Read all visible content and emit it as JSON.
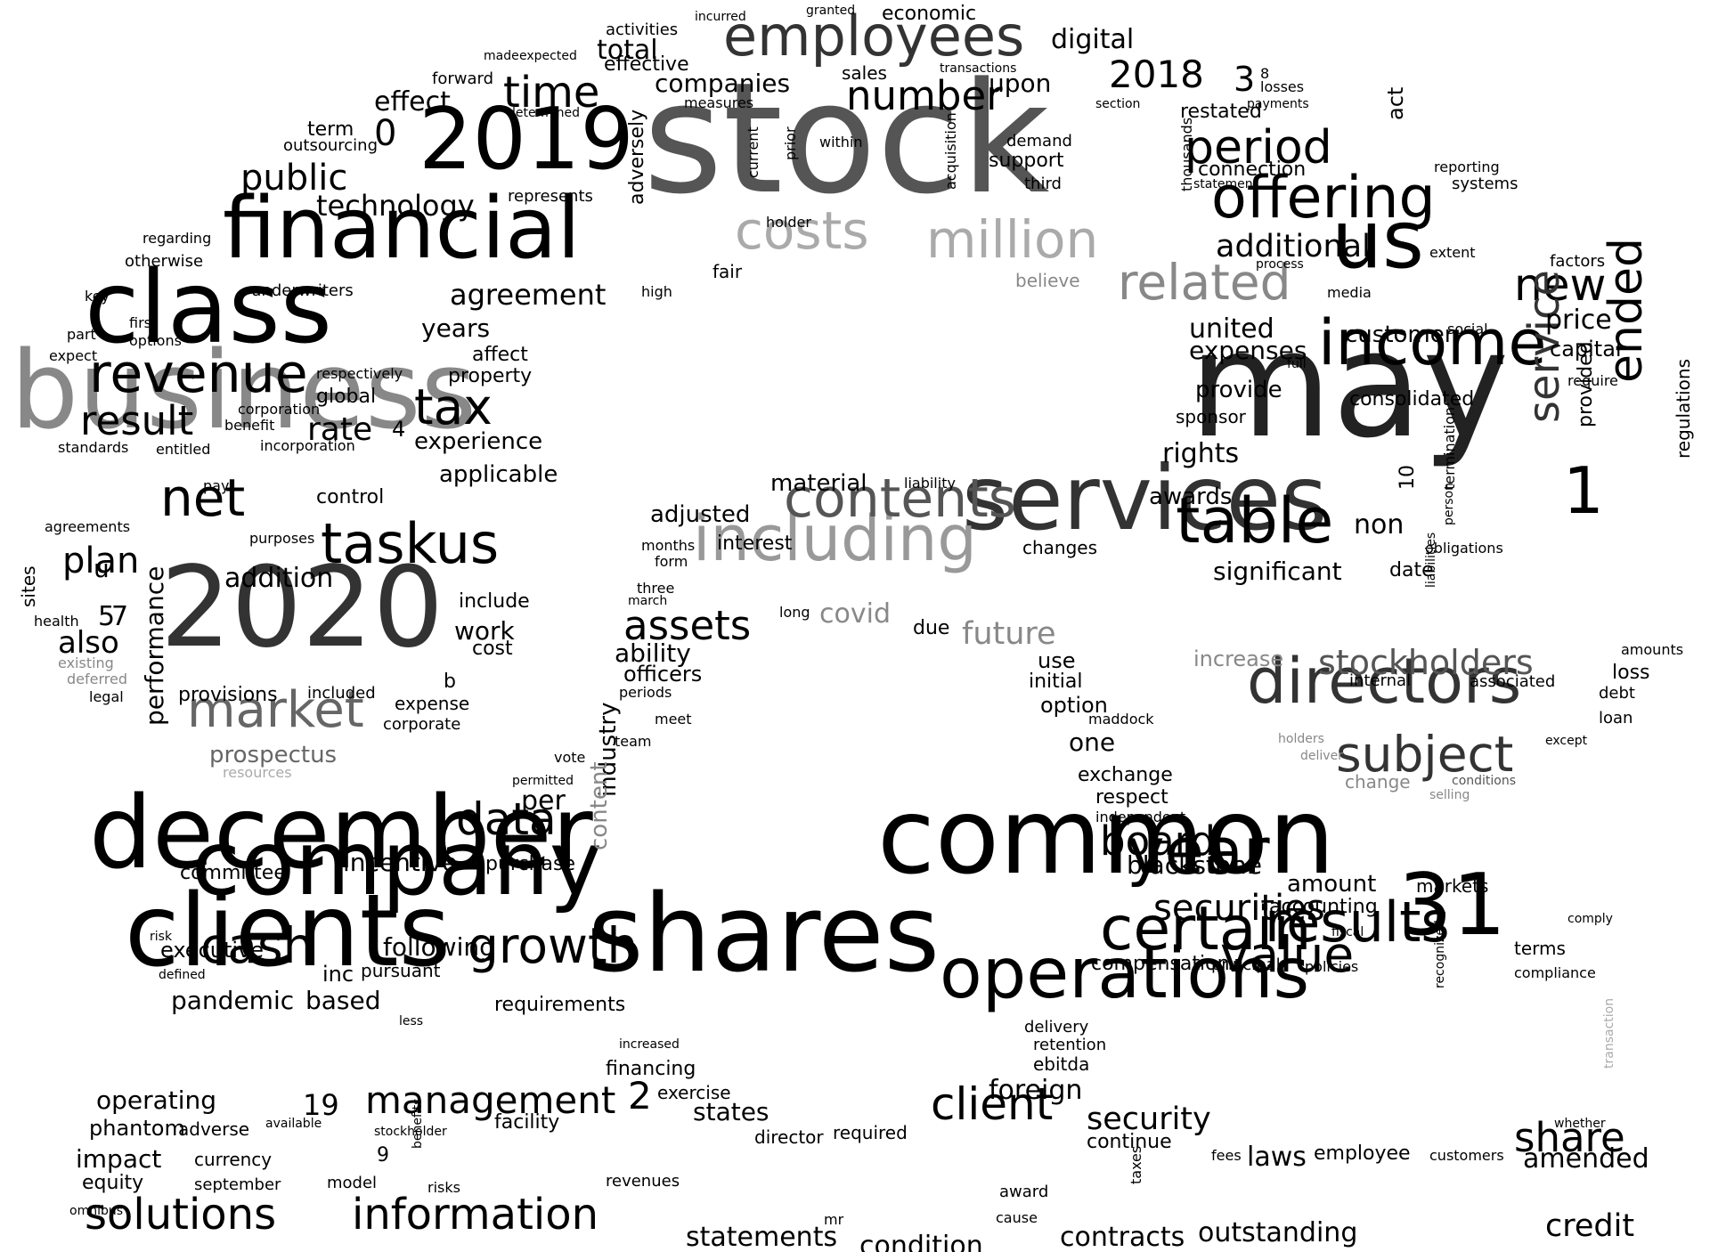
{
  "words": [
    {
      "text": "stock",
      "color": "#555555"
    },
    {
      "text": "may",
      "color": "#222222"
    },
    {
      "text": "business",
      "color": "#888888"
    },
    {
      "text": "services",
      "color": "#333333"
    },
    {
      "text": "common",
      "color": "#000000"
    },
    {
      "text": "shares",
      "color": "#000000"
    },
    {
      "text": "clients",
      "color": "#000000"
    },
    {
      "text": "december",
      "color": "#000000"
    },
    {
      "text": "2020",
      "color": "#333333"
    },
    {
      "text": "class",
      "color": "#000000"
    },
    {
      "text": "financial",
      "color": "#000000"
    },
    {
      "text": "2019",
      "color": "#000000"
    },
    {
      "text": "company",
      "color": "#000000"
    },
    {
      "text": "operations",
      "color": "#000000"
    },
    {
      "text": "31",
      "color": "#000000"
    },
    {
      "text": "including",
      "color": "#999999"
    },
    {
      "text": "employees",
      "color": "#333333"
    },
    {
      "text": "us",
      "color": "#000000"
    },
    {
      "text": "income",
      "color": "#000000"
    },
    {
      "text": "certain",
      "color": "#000000"
    },
    {
      "text": "directors",
      "color": "#333333"
    },
    {
      "text": "offering",
      "color": "#000000"
    },
    {
      "text": "million",
      "color": "#aaaaaa"
    },
    {
      "text": "costs",
      "color": "#aaaaaa"
    },
    {
      "text": "contents",
      "color": "#555555"
    },
    {
      "text": "table",
      "color": "#000000"
    },
    {
      "text": "year",
      "color": "#000000"
    },
    {
      "text": "results",
      "color": "#000000"
    },
    {
      "text": "revenue",
      "color": "#000000"
    },
    {
      "text": "market",
      "color": "#666666"
    },
    {
      "text": "taskus",
      "color": "#000000"
    },
    {
      "text": "net",
      "color": "#000000"
    },
    {
      "text": "related",
      "color": "#888888"
    },
    {
      "text": "subject",
      "color": "#333333"
    },
    {
      "text": "information",
      "color": "#000000"
    },
    {
      "text": "solutions",
      "color": "#000000"
    },
    {
      "text": "growth",
      "color": "#000000"
    },
    {
      "text": "cash",
      "color": "#000000"
    },
    {
      "text": "period",
      "color": "#000000"
    },
    {
      "text": "time",
      "color": "#000000"
    },
    {
      "text": "result",
      "color": "#000000"
    },
    {
      "text": "value",
      "color": "#000000"
    },
    {
      "text": "securities",
      "color": "#000000"
    },
    {
      "text": "client",
      "color": "#000000"
    },
    {
      "text": "data",
      "color": "#000000"
    },
    {
      "text": "tax",
      "color": "#000000"
    },
    {
      "text": "public",
      "color": "#000000"
    },
    {
      "text": "number",
      "color": "#000000"
    },
    {
      "text": "board",
      "color": "#000000"
    },
    {
      "text": "share",
      "color": "#000000"
    },
    {
      "text": "management",
      "color": "#000000"
    },
    {
      "text": "stockholders",
      "color": "#555555"
    },
    {
      "text": "assets",
      "color": "#000000"
    },
    {
      "text": "future",
      "color": "#888888"
    },
    {
      "text": "new",
      "color": "#000000"
    },
    {
      "text": "ended",
      "color": "#000000"
    },
    {
      "text": "service",
      "color": "#333333"
    },
    {
      "text": "1",
      "color": "#000000"
    },
    {
      "text": "2",
      "color": "#000000"
    },
    {
      "text": "2018",
      "color": "#000000"
    },
    {
      "text": "technology",
      "color": "#000000"
    },
    {
      "text": "additional",
      "color": "#000000"
    },
    {
      "text": "agreement",
      "color": "#000000"
    },
    {
      "text": "plan",
      "color": "#000000"
    },
    {
      "text": "prospectus",
      "color": "#666666"
    },
    {
      "text": "security",
      "color": "#000000"
    },
    {
      "text": "pandemic",
      "color": "#000000"
    },
    {
      "text": "based",
      "color": "#000000"
    },
    {
      "text": "incentive",
      "color": "#000000"
    },
    {
      "text": "following",
      "color": "#000000"
    },
    {
      "text": "amended",
      "color": "#000000"
    },
    {
      "text": "outstanding",
      "color": "#000000"
    },
    {
      "text": "statements",
      "color": "#000000"
    },
    {
      "text": "credit",
      "color": "#000000"
    },
    {
      "text": "condition",
      "color": "#000000"
    },
    {
      "text": "contracts",
      "color": "#000000"
    },
    {
      "text": "blackstone",
      "color": "#000000"
    },
    {
      "text": "foreign",
      "color": "#000000"
    },
    {
      "text": "laws",
      "color": "#000000"
    },
    {
      "text": "operating",
      "color": "#000000"
    },
    {
      "text": "equity",
      "color": "#000000"
    },
    {
      "text": "impact",
      "color": "#000000"
    },
    {
      "text": "phantom",
      "color": "#000000"
    },
    {
      "text": "executive",
      "color": "#000000"
    },
    {
      "text": "committee",
      "color": "#000000"
    },
    {
      "text": "provisions",
      "color": "#000000"
    },
    {
      "text": "also",
      "color": "#000000"
    },
    {
      "text": "effect",
      "color": "#000000"
    },
    {
      "text": "companies",
      "color": "#000000"
    },
    {
      "text": "total",
      "color": "#000000"
    },
    {
      "text": "digital",
      "color": "#000000"
    },
    {
      "text": "economic",
      "color": "#000000"
    },
    {
      "text": "upon",
      "color": "#000000"
    },
    {
      "text": "years",
      "color": "#000000"
    },
    {
      "text": "rate",
      "color": "#000000"
    },
    {
      "text": "experience",
      "color": "#000000"
    },
    {
      "text": "applicable",
      "color": "#000000"
    },
    {
      "text": "addition",
      "color": "#000000"
    },
    {
      "text": "control",
      "color": "#000000"
    },
    {
      "text": "include",
      "color": "#000000"
    },
    {
      "text": "work",
      "color": "#000000"
    },
    {
      "text": "cost",
      "color": "#000000"
    },
    {
      "text": "expense",
      "color": "#000000"
    },
    {
      "text": "corporate",
      "color": "#000000"
    },
    {
      "text": "performance",
      "color": "#000000"
    },
    {
      "text": "industry",
      "color": "#000000"
    },
    {
      "text": "content",
      "color": "#888888"
    },
    {
      "text": "ability",
      "color": "#000000"
    },
    {
      "text": "officers",
      "color": "#000000"
    },
    {
      "text": "adjusted",
      "color": "#000000"
    },
    {
      "text": "interest",
      "color": "#000000"
    },
    {
      "text": "material",
      "color": "#000000"
    },
    {
      "text": "covid",
      "color": "#888888"
    },
    {
      "text": "due",
      "color": "#000000"
    },
    {
      "text": "use",
      "color": "#000000"
    },
    {
      "text": "initial",
      "color": "#000000"
    },
    {
      "text": "option",
      "color": "#000000"
    },
    {
      "text": "one",
      "color": "#000000"
    },
    {
      "text": "exchange",
      "color": "#000000"
    },
    {
      "text": "respect",
      "color": "#000000"
    },
    {
      "text": "purchase",
      "color": "#000000"
    },
    {
      "text": "per",
      "color": "#000000"
    },
    {
      "text": "inc",
      "color": "#000000"
    },
    {
      "text": "pursuant",
      "color": "#000000"
    },
    {
      "text": "requirements",
      "color": "#000000"
    },
    {
      "text": "facility",
      "color": "#000000"
    },
    {
      "text": "adverse",
      "color": "#000000"
    },
    {
      "text": "currency",
      "color": "#000000"
    },
    {
      "text": "september",
      "color": "#000000"
    },
    {
      "text": "model",
      "color": "#000000"
    },
    {
      "text": "revenues",
      "color": "#000000"
    },
    {
      "text": "financing",
      "color": "#000000"
    },
    {
      "text": "exercise",
      "color": "#000000"
    },
    {
      "text": "states",
      "color": "#000000"
    },
    {
      "text": "director",
      "color": "#000000"
    },
    {
      "text": "required",
      "color": "#000000"
    },
    {
      "text": "continue",
      "color": "#000000"
    },
    {
      "text": "compensation",
      "color": "#000000"
    },
    {
      "text": "principal",
      "color": "#000000"
    },
    {
      "text": "accounting",
      "color": "#000000"
    },
    {
      "text": "amount",
      "color": "#000000"
    },
    {
      "text": "markets",
      "color": "#000000"
    },
    {
      "text": "terms",
      "color": "#000000"
    },
    {
      "text": "compliance",
      "color": "#000000"
    },
    {
      "text": "employee",
      "color": "#000000"
    },
    {
      "text": "ebitda",
      "color": "#000000"
    },
    {
      "text": "retention",
      "color": "#000000"
    },
    {
      "text": "delivery",
      "color": "#000000"
    },
    {
      "text": "award",
      "color": "#000000"
    },
    {
      "text": "customers",
      "color": "#000000"
    },
    {
      "text": "rights",
      "color": "#000000"
    },
    {
      "text": "awards",
      "color": "#000000"
    },
    {
      "text": "significant",
      "color": "#000000"
    },
    {
      "text": "increase",
      "color": "#888888"
    },
    {
      "text": "united",
      "color": "#000000"
    },
    {
      "text": "expenses",
      "color": "#000000"
    },
    {
      "text": "provide",
      "color": "#000000"
    },
    {
      "text": "sponsor",
      "color": "#000000"
    },
    {
      "text": "consolidated",
      "color": "#000000"
    },
    {
      "text": "customer",
      "color": "#000000"
    },
    {
      "text": "capital",
      "color": "#000000"
    },
    {
      "text": "price",
      "color": "#000000"
    },
    {
      "text": "loss",
      "color": "#000000"
    },
    {
      "text": "debt",
      "color": "#000000"
    },
    {
      "text": "date",
      "color": "#000000"
    },
    {
      "text": "non",
      "color": "#000000"
    },
    {
      "text": "internal",
      "color": "#000000"
    },
    {
      "text": "associated",
      "color": "#000000"
    },
    {
      "text": "loan",
      "color": "#000000"
    },
    {
      "text": "connection",
      "color": "#000000"
    },
    {
      "text": "restated",
      "color": "#000000"
    },
    {
      "text": "support",
      "color": "#000000"
    },
    {
      "text": "demand",
      "color": "#000000"
    },
    {
      "text": "third",
      "color": "#000000"
    },
    {
      "text": "represents",
      "color": "#000000"
    },
    {
      "text": "adversely",
      "color": "#000000"
    },
    {
      "text": "global",
      "color": "#000000"
    },
    {
      "text": "property",
      "color": "#000000"
    },
    {
      "text": "affect",
      "color": "#000000"
    },
    {
      "text": "underwriters",
      "color": "#000000"
    },
    {
      "text": "term",
      "color": "#000000"
    },
    {
      "text": "outsourcing",
      "color": "#000000"
    },
    {
      "text": "otherwise",
      "color": "#000000"
    },
    {
      "text": "regarding",
      "color": "#000000"
    },
    {
      "text": "forward",
      "color": "#000000"
    },
    {
      "text": "sales",
      "color": "#000000"
    },
    {
      "text": "effective",
      "color": "#000000"
    },
    {
      "text": "activities",
      "color": "#000000"
    },
    {
      "text": "sites",
      "color": "#000000"
    },
    {
      "text": "agreements",
      "color": "#000000"
    },
    {
      "text": "legal",
      "color": "#000000"
    },
    {
      "text": "health",
      "color": "#000000"
    },
    {
      "text": "deferred",
      "color": "#888888"
    },
    {
      "text": "existing",
      "color": "#888888"
    },
    {
      "text": "resources",
      "color": "#aaaaaa"
    },
    {
      "text": "included",
      "color": "#000000"
    },
    {
      "text": "team",
      "color": "#000000"
    },
    {
      "text": "vote",
      "color": "#000000"
    },
    {
      "text": "meet",
      "color": "#000000"
    },
    {
      "text": "periods",
      "color": "#000000"
    },
    {
      "text": "months",
      "color": "#000000"
    },
    {
      "text": "three",
      "color": "#000000"
    },
    {
      "text": "march",
      "color": "#000000"
    },
    {
      "text": "long",
      "color": "#000000"
    },
    {
      "text": "form",
      "color": "#000000"
    },
    {
      "text": "liability",
      "color": "#000000"
    },
    {
      "text": "changes",
      "color": "#000000"
    },
    {
      "text": "maddock",
      "color": "#000000"
    },
    {
      "text": "independent",
      "color": "#000000"
    },
    {
      "text": "regulations",
      "color": "#000000"
    },
    {
      "text": "provided",
      "color": "#000000"
    },
    {
      "text": "amounts",
      "color": "#000000"
    },
    {
      "text": "change",
      "color": "#888888"
    },
    {
      "text": "obligations",
      "color": "#000000"
    },
    {
      "text": "act",
      "color": "#000000"
    },
    {
      "text": "systems",
      "color": "#000000"
    },
    {
      "text": "reporting",
      "color": "#000000"
    },
    {
      "text": "factors",
      "color": "#000000"
    },
    {
      "text": "extent",
      "color": "#000000"
    },
    {
      "text": "require",
      "color": "#000000"
    },
    {
      "text": "social",
      "color": "#000000"
    },
    {
      "text": "media",
      "color": "#000000"
    },
    {
      "text": "fair",
      "color": "#000000"
    },
    {
      "text": "believe",
      "color": "#888888"
    },
    {
      "text": "high",
      "color": "#000000"
    },
    {
      "text": "expect",
      "color": "#000000"
    },
    {
      "text": "part",
      "color": "#000000"
    },
    {
      "text": "options",
      "color": "#000000"
    },
    {
      "text": "first",
      "color": "#000000"
    },
    {
      "text": "key",
      "color": "#000000"
    },
    {
      "text": "pay",
      "color": "#000000"
    },
    {
      "text": "benefit",
      "color": "#000000"
    },
    {
      "text": "purposes",
      "color": "#000000"
    },
    {
      "text": "entitled",
      "color": "#000000"
    },
    {
      "text": "standards",
      "color": "#000000"
    },
    {
      "text": "incorporation",
      "color": "#000000"
    },
    {
      "text": "corporation",
      "color": "#000000"
    },
    {
      "text": "respectively",
      "color": "#000000"
    },
    {
      "text": "holder",
      "color": "#000000"
    },
    {
      "text": "current",
      "color": "#000000"
    },
    {
      "text": "acquisition",
      "color": "#000000"
    },
    {
      "text": "prior",
      "color": "#000000"
    },
    {
      "text": "within",
      "color": "#000000"
    },
    {
      "text": "measures",
      "color": "#000000"
    },
    {
      "text": "determined",
      "color": "#000000"
    },
    {
      "text": "made",
      "color": "#000000"
    },
    {
      "text": "expected",
      "color": "#000000"
    },
    {
      "text": "incurred",
      "color": "#000000"
    },
    {
      "text": "granted",
      "color": "#000000"
    },
    {
      "text": "transactions",
      "color": "#000000"
    },
    {
      "text": "section",
      "color": "#000000"
    },
    {
      "text": "thousands",
      "color": "#000000"
    },
    {
      "text": "losses",
      "color": "#000000"
    },
    {
      "text": "payments",
      "color": "#000000"
    },
    {
      "text": "statement",
      "color": "#000000"
    },
    {
      "text": "process",
      "color": "#000000"
    },
    {
      "text": "full",
      "color": "#000000"
    },
    {
      "text": "fees",
      "color": "#000000"
    },
    {
      "text": "taxes",
      "color": "#000000"
    },
    {
      "text": "fiscal",
      "color": "#000000"
    },
    {
      "text": "policies",
      "color": "#000000"
    },
    {
      "text": "holders",
      "color": "#888888"
    },
    {
      "text": "deliver",
      "color": "#888888"
    },
    {
      "text": "selling",
      "color": "#888888"
    },
    {
      "text": "conditions",
      "color": "#555555"
    },
    {
      "text": "except",
      "color": "#000000"
    },
    {
      "text": "termination",
      "color": "#000000"
    },
    {
      "text": "person",
      "color": "#000000"
    },
    {
      "text": "liabilities",
      "color": "#000000"
    },
    {
      "text": "transaction",
      "color": "#aaaaaa"
    },
    {
      "text": "whether",
      "color": "#000000"
    },
    {
      "text": "comply",
      "color": "#000000"
    },
    {
      "text": "recognized",
      "color": "#000000"
    },
    {
      "text": "mr",
      "color": "#000000"
    },
    {
      "text": "cause",
      "color": "#000000"
    },
    {
      "text": "benefits",
      "color": "#000000"
    },
    {
      "text": "risks",
      "color": "#000000"
    },
    {
      "text": "available",
      "color": "#000000"
    },
    {
      "text": "stockholder",
      "color": "#000000"
    },
    {
      "text": "less",
      "color": "#000000"
    },
    {
      "text": "increased",
      "color": "#000000"
    },
    {
      "text": "defined",
      "color": "#000000"
    },
    {
      "text": "risk",
      "color": "#000000"
    },
    {
      "text": "omnibus",
      "color": "#000000"
    },
    {
      "text": "permitted",
      "color": "#000000"
    },
    {
      "text": "b",
      "color": "#000000"
    },
    {
      "text": "u",
      "color": "#000000"
    },
    {
      "text": "0",
      "color": "#000000"
    },
    {
      "text": "3",
      "color": "#000000"
    },
    {
      "text": "4",
      "color": "#000000"
    },
    {
      "text": "5",
      "color": "#000000"
    },
    {
      "text": "7",
      "color": "#000000"
    },
    {
      "text": "19",
      "color": "#000000"
    },
    {
      "text": "10",
      "color": "#000000"
    },
    {
      "text": "9",
      "color": "#000000"
    },
    {
      "text": "8",
      "color": "#000000"
    }
  ]
}
